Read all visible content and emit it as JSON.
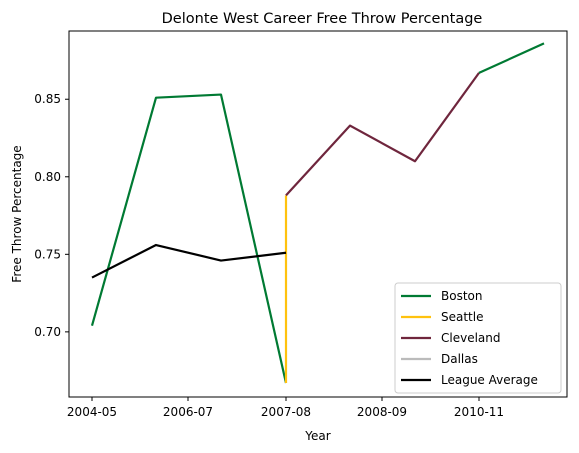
{
  "chart_data": {
    "type": "line",
    "title": "Delonte West Career Free Throw Percentage",
    "xlabel": "Year",
    "ylabel": "Free Throw Percentage",
    "x_tick_labels": [
      "2004-05",
      "2006-07",
      "2007-08",
      "2008-09",
      "2010-11"
    ],
    "y_ticks": [
      0.7,
      0.75,
      0.8,
      0.85
    ],
    "ylim": [
      0.658,
      0.894
    ],
    "legend_position": "lower right",
    "series": [
      {
        "name": "Boston",
        "color": "#007a33",
        "points": [
          [
            0,
            0.704
          ],
          [
            1,
            0.851
          ],
          [
            2,
            0.853
          ],
          [
            3,
            0.667
          ]
        ]
      },
      {
        "name": "Seattle",
        "color": "#ffc20e",
        "points": [
          [
            3,
            0.667
          ],
          [
            3,
            0.788
          ]
        ]
      },
      {
        "name": "Cleveland",
        "color": "#6f263d",
        "points": [
          [
            3,
            0.788
          ],
          [
            4,
            0.833
          ],
          [
            5,
            0.81
          ],
          [
            6,
            0.867
          ]
        ]
      },
      {
        "name": "Dallas",
        "color": "#bbbbbb",
        "points": []
      },
      {
        "name": "League Average",
        "color": "#000000",
        "points": [
          [
            0,
            0.735
          ],
          [
            1,
            0.756
          ],
          [
            2,
            0.746
          ],
          [
            3,
            0.751
          ]
        ]
      },
      {
        "name": "",
        "color": "#007a33",
        "points": [
          [
            6,
            0.867
          ],
          [
            7,
            0.886
          ]
        ]
      }
    ]
  }
}
